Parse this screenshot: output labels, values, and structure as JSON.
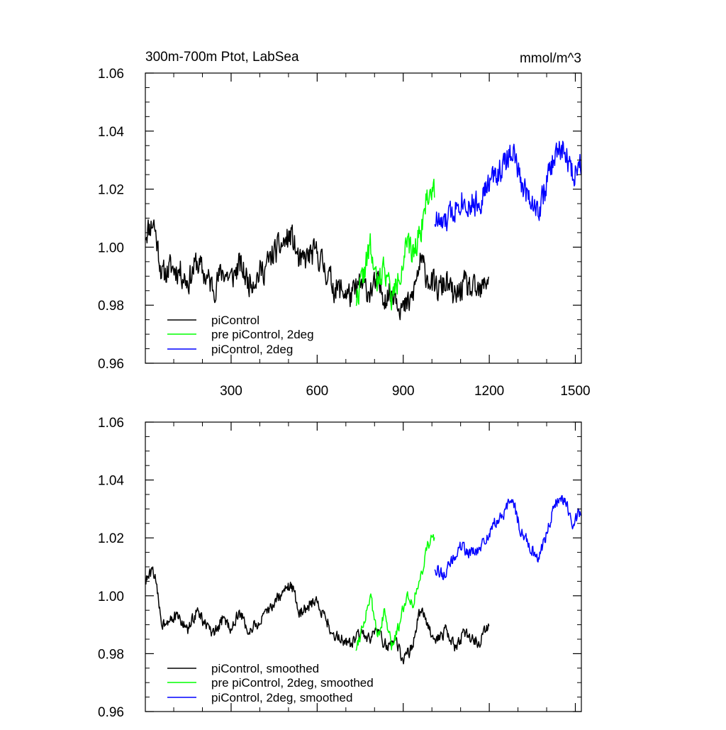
{
  "chart_data": [
    {
      "type": "line",
      "title": "300m-700m Ptot, LabSea",
      "units": "mmol/m^3",
      "ylim": [
        0.96,
        1.06
      ],
      "yticks": [
        "0.96",
        "0.98",
        "1.00",
        "1.02",
        "1.04",
        "1.06"
      ],
      "xlim": [
        1,
        1521
      ],
      "xticks": [
        300,
        600,
        900,
        1200,
        1500
      ],
      "xtick_labels": [
        "300",
        "600",
        "900",
        "1200",
        "1500"
      ],
      "legend_position": "bottom-left",
      "series": [
        {
          "name": "piControl",
          "color": "#000000",
          "x": [
            1,
            30,
            60,
            90,
            120,
            150,
            180,
            210,
            240,
            270,
            300,
            330,
            360,
            390,
            420,
            450,
            480,
            510,
            540,
            570,
            600,
            630,
            660,
            690,
            720,
            750,
            780,
            810,
            840,
            870,
            900,
            930,
            960,
            990,
            1020,
            1050,
            1080,
            1110,
            1140,
            1170,
            1200
          ],
          "y": [
            1.005,
            1.009,
            0.99,
            0.993,
            0.992,
            0.988,
            0.995,
            0.99,
            0.986,
            0.992,
            0.989,
            0.994,
            0.988,
            0.99,
            0.993,
            0.998,
            1.001,
            1.004,
            0.994,
            0.997,
            0.998,
            0.992,
            0.986,
            0.985,
            0.983,
            0.987,
            0.985,
            0.987,
            0.983,
            0.985,
            0.978,
            0.982,
            0.995,
            0.989,
            0.985,
            0.988,
            0.982,
            0.987,
            0.985,
            0.984,
            0.991
          ],
          "noise": 0.0065,
          "seed": 11
        },
        {
          "name": "pre piControl, 2deg",
          "color": "#00ff00",
          "x": [
            735,
            760,
            785,
            810,
            835,
            860,
            885,
            910,
            935,
            960,
            985,
            1010
          ],
          "y": [
            0.982,
            0.99,
            1.0,
            0.986,
            0.994,
            0.982,
            0.99,
            1.0,
            0.998,
            1.006,
            1.018,
            1.02
          ],
          "noise": 0.0065,
          "seed": 22
        },
        {
          "name": "piControl, 2deg",
          "color": "#0000ff",
          "x": [
            1010,
            1040,
            1070,
            1100,
            1130,
            1160,
            1190,
            1220,
            1250,
            1280,
            1310,
            1340,
            1370,
            1400,
            1430,
            1460,
            1490,
            1521
          ],
          "y": [
            1.01,
            1.007,
            1.012,
            1.017,
            1.015,
            1.015,
            1.02,
            1.025,
            1.028,
            1.034,
            1.022,
            1.018,
            1.012,
            1.022,
            1.032,
            1.034,
            1.025,
            1.03
          ],
          "noise": 0.0065,
          "seed": 33
        }
      ]
    },
    {
      "type": "line",
      "ylim": [
        0.96,
        1.06
      ],
      "yticks": [
        "0.96",
        "0.98",
        "1.00",
        "1.02",
        "1.04",
        "1.06"
      ],
      "xlim": [
        1,
        1521
      ],
      "xticks": [
        300,
        600,
        900,
        1200,
        1500
      ],
      "legend_position": "bottom-left",
      "series": [
        {
          "name": "piControl, smoothed",
          "color": "#000000",
          "x": [
            1,
            30,
            60,
            90,
            120,
            150,
            180,
            210,
            240,
            270,
            300,
            330,
            360,
            390,
            420,
            450,
            480,
            510,
            540,
            570,
            600,
            630,
            660,
            690,
            720,
            750,
            780,
            810,
            840,
            870,
            900,
            930,
            960,
            990,
            1020,
            1050,
            1080,
            1110,
            1140,
            1170,
            1200
          ],
          "y": [
            1.005,
            1.009,
            0.99,
            0.993,
            0.992,
            0.988,
            0.995,
            0.99,
            0.986,
            0.992,
            0.989,
            0.994,
            0.988,
            0.99,
            0.993,
            0.998,
            1.001,
            1.004,
            0.994,
            0.997,
            0.998,
            0.992,
            0.986,
            0.985,
            0.983,
            0.987,
            0.985,
            0.987,
            0.983,
            0.985,
            0.978,
            0.982,
            0.995,
            0.989,
            0.985,
            0.988,
            0.982,
            0.987,
            0.985,
            0.984,
            0.991
          ],
          "noise": 0.003,
          "seed": 44
        },
        {
          "name": "pre piControl, 2deg, smoothed",
          "color": "#00ff00",
          "x": [
            735,
            760,
            785,
            810,
            835,
            860,
            885,
            910,
            935,
            960,
            985,
            1010
          ],
          "y": [
            0.982,
            0.99,
            1.0,
            0.986,
            0.994,
            0.982,
            0.99,
            1.0,
            0.998,
            1.006,
            1.018,
            1.02
          ],
          "noise": 0.003,
          "seed": 55
        },
        {
          "name": "piControl, 2deg, smoothed",
          "color": "#0000ff",
          "x": [
            1010,
            1040,
            1070,
            1100,
            1130,
            1160,
            1190,
            1220,
            1250,
            1280,
            1310,
            1340,
            1370,
            1400,
            1430,
            1460,
            1490,
            1521
          ],
          "y": [
            1.01,
            1.007,
            1.012,
            1.017,
            1.015,
            1.015,
            1.02,
            1.025,
            1.028,
            1.034,
            1.022,
            1.018,
            1.012,
            1.022,
            1.032,
            1.034,
            1.025,
            1.03
          ],
          "noise": 0.003,
          "seed": 66
        }
      ]
    }
  ]
}
